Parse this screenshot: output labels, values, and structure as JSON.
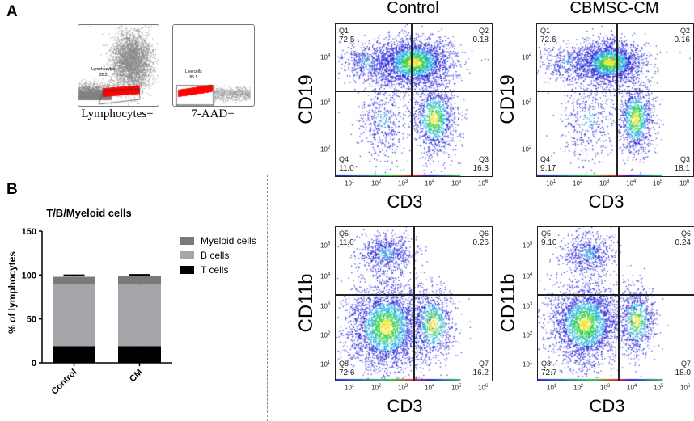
{
  "panel_a_label": "A",
  "panel_b_label": "B",
  "gating": [
    {
      "caption": "Lymphocytes+",
      "gate_name": "Lymphocytes",
      "gate_value": "32.3"
    },
    {
      "caption": "7-AAD+",
      "gate_name": "Live cells",
      "gate_value": "85.1"
    }
  ],
  "flow_plots": [
    {
      "title": "Control",
      "xlabel": "CD3",
      "ylabel": "CD19",
      "quadrants": [
        {
          "name": "Q1",
          "value": "72.5"
        },
        {
          "name": "Q2",
          "value": "0.18"
        },
        {
          "name": "Q3",
          "value": "16.3"
        },
        {
          "name": "Q4",
          "value": "11.0"
        }
      ],
      "xticks": [
        "1",
        "2",
        "3",
        "4",
        "5",
        "6"
      ],
      "yticks": [
        "4",
        "3",
        "2"
      ]
    },
    {
      "title": "CBMSC-CM",
      "xlabel": "CD3",
      "ylabel": "CD19",
      "quadrants": [
        {
          "name": "Q1",
          "value": "72.6"
        },
        {
          "name": "Q2",
          "value": "0.16"
        },
        {
          "name": "Q3",
          "value": "18.1"
        },
        {
          "name": "Q4",
          "value": "9.17"
        }
      ],
      "xticks": [
        "1",
        "2",
        "3",
        "4",
        "5",
        "6"
      ],
      "yticks": [
        "4",
        "3",
        "2"
      ]
    },
    {
      "title": "",
      "xlabel": "CD3",
      "ylabel": "CD11b",
      "quadrants": [
        {
          "name": "Q5",
          "value": "11.0"
        },
        {
          "name": "Q6",
          "value": "0.26"
        },
        {
          "name": "Q7",
          "value": "16.2"
        },
        {
          "name": "Q8",
          "value": "72.6"
        }
      ],
      "xticks": [
        "1",
        "2",
        "3",
        "4",
        "5",
        "6"
      ],
      "yticks": [
        "5",
        "4",
        "3",
        "2",
        "1"
      ]
    },
    {
      "title": "",
      "xlabel": "CD3",
      "ylabel": "CD11b",
      "quadrants": [
        {
          "name": "Q5",
          "value": "9.10"
        },
        {
          "name": "Q6",
          "value": "0.24"
        },
        {
          "name": "Q7",
          "value": "18.0"
        },
        {
          "name": "Q8",
          "value": "72.7"
        }
      ],
      "xticks": [
        "1",
        "2",
        "3",
        "4",
        "5",
        "6"
      ],
      "yticks": [
        "5",
        "4",
        "3",
        "2",
        "1"
      ]
    }
  ],
  "tick_base": "10",
  "chart_data": {
    "type": "bar",
    "stacked": true,
    "title": "T/B/Myeloid cells",
    "xlabel": "",
    "ylabel": "% of lymphocytes",
    "ylim": [
      0,
      150
    ],
    "yticks": [
      "0",
      "50",
      "100",
      "150"
    ],
    "categories": [
      "Control",
      "CM"
    ],
    "series": [
      {
        "name": "T cells",
        "values": [
          19,
          19
        ],
        "error": [
          1.5,
          2.5
        ],
        "color": "#000000"
      },
      {
        "name": "B cells",
        "values": [
          70,
          70
        ],
        "error": [
          1.5,
          1.5
        ],
        "color": "#a6a6aa"
      },
      {
        "name": "Myeloid cells",
        "values": [
          9,
          9.5
        ],
        "error": [
          1.5,
          1.5
        ],
        "color": "#7a7a7a"
      }
    ],
    "legend_position": "right",
    "grid": false
  }
}
